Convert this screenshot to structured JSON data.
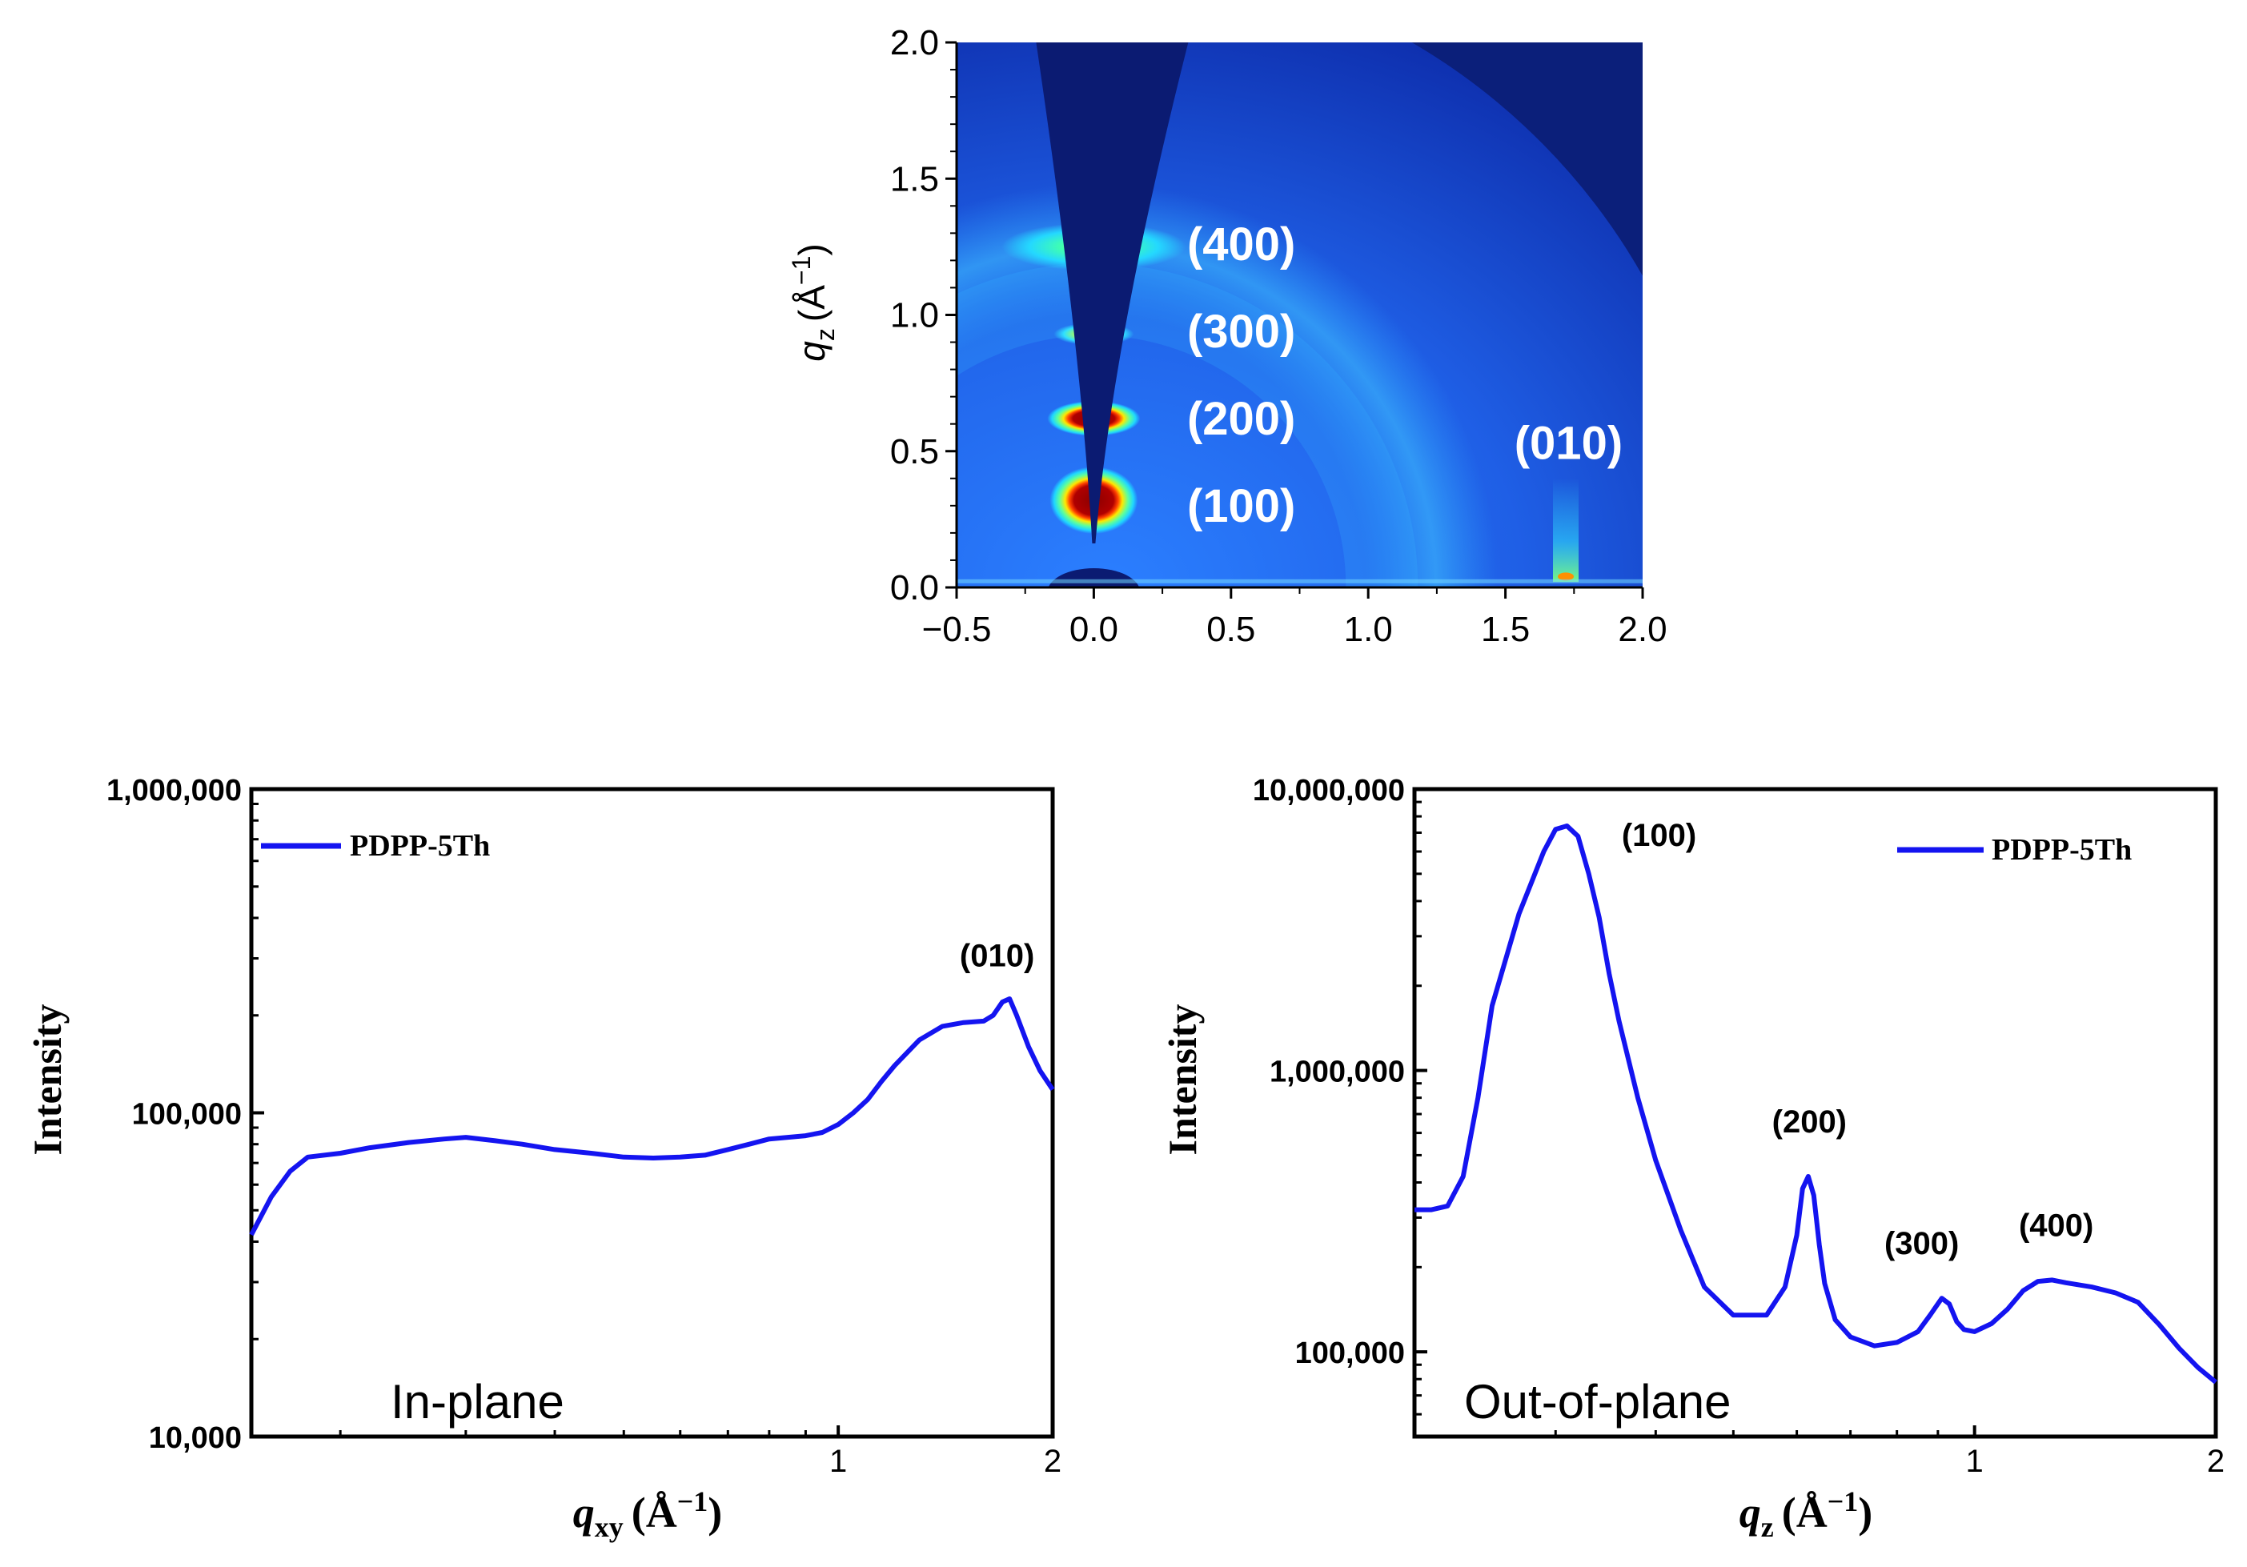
{
  "chart_data": [
    {
      "type": "heatmap",
      "panel": "top",
      "title": "",
      "xlabel": "",
      "ylabel": "q_z (Å^-1)",
      "ylabel_main": "q",
      "ylabel_sub": "z",
      "ylabel_unit": "(Å",
      "ylabel_sup": "−1",
      "ylabel_close": ")",
      "xlim": [
        -0.5,
        2.0
      ],
      "ylim": [
        0.0,
        2.0
      ],
      "xticks": [
        "−0.5",
        "0.0",
        "0.5",
        "1.0",
        "1.5",
        "2.0"
      ],
      "xtick_values": [
        -0.5,
        0.0,
        0.5,
        1.0,
        1.5,
        2.0
      ],
      "yticks": [
        "0.0",
        "0.5",
        "1.0",
        "1.5",
        "2.0"
      ],
      "ytick_values": [
        0.0,
        0.5,
        1.0,
        1.5,
        2.0
      ],
      "peaks": [
        {
          "label": "(100)",
          "qxy": 0.0,
          "qz": 0.32,
          "label_qxy": 0.34,
          "label_qz": 0.3
        },
        {
          "label": "(200)",
          "qxy": 0.0,
          "qz": 0.62,
          "label_qxy": 0.34,
          "label_qz": 0.62
        },
        {
          "label": "(300)",
          "qxy": 0.0,
          "qz": 0.93,
          "label_qxy": 0.34,
          "label_qz": 0.94
        },
        {
          "label": "(400)",
          "qxy": 0.0,
          "qz": 1.25,
          "label_qxy": 0.34,
          "label_qz": 1.26
        },
        {
          "label": "(010)",
          "qxy": 1.72,
          "qz": 0.05,
          "label_qxy": 1.73,
          "label_qz": 0.53
        }
      ]
    },
    {
      "type": "line",
      "panel": "bottom-left",
      "annotation": "In-plane",
      "xlabel": "q_xy (Å^-1)",
      "xlabel_main": "q",
      "xlabel_sub": "xy",
      "xlabel_unit": "(Å",
      "xlabel_sup": "−1",
      "xlabel_close": ")",
      "ylabel": "Intensity",
      "xscale": "log",
      "yscale": "log",
      "xlim": [
        0.15,
        2.0
      ],
      "ylim": [
        10000,
        1000000
      ],
      "xticks": [
        "1",
        "2"
      ],
      "xtick_values": [
        1,
        2
      ],
      "yticks": [
        "10,000",
        "100,000",
        "1,000,000"
      ],
      "ytick_values": [
        10000,
        100000,
        1000000
      ],
      "legend": "top-left",
      "series": [
        {
          "name": "PDPP-5Th",
          "color": "#1414f0",
          "x": [
            0.15,
            0.16,
            0.17,
            0.18,
            0.2,
            0.22,
            0.25,
            0.28,
            0.3,
            0.33,
            0.36,
            0.4,
            0.45,
            0.5,
            0.55,
            0.6,
            0.65,
            0.7,
            0.75,
            0.8,
            0.85,
            0.9,
            0.95,
            1.0,
            1.05,
            1.1,
            1.15,
            1.2,
            1.3,
            1.4,
            1.5,
            1.6,
            1.65,
            1.7,
            1.74,
            1.78,
            1.85,
            1.92,
            2.0
          ],
          "y": [
            42000,
            55000,
            66000,
            73000,
            75000,
            78000,
            81000,
            83000,
            84000,
            82000,
            80000,
            77000,
            75000,
            73000,
            72500,
            73000,
            74000,
            77000,
            80000,
            83000,
            84000,
            85000,
            87000,
            92000,
            100000,
            110000,
            125000,
            140000,
            168000,
            185000,
            190000,
            192000,
            200000,
            220000,
            225000,
            200000,
            160000,
            135000,
            118000
          ]
        }
      ],
      "peaks": [
        {
          "label": "(010)",
          "x": 1.76,
          "y": 226000
        }
      ]
    },
    {
      "type": "line",
      "panel": "bottom-right",
      "annotation": "Out-of-plane",
      "xlabel": "q_z (Å^-1)",
      "xlabel_main": "q",
      "xlabel_sub": "z",
      "xlabel_unit": "(Å",
      "xlabel_sup": "−1",
      "xlabel_close": ")",
      "ylabel": "Intensity",
      "xscale": "log",
      "yscale": "log",
      "xlim": [
        0.2,
        2.0
      ],
      "ylim": [
        50000,
        10000000
      ],
      "xticks": [
        "1",
        "2"
      ],
      "xtick_values": [
        1,
        2
      ],
      "yticks": [
        "100,000",
        "1,000,000",
        "10,000,000"
      ],
      "ytick_values": [
        100000,
        1000000,
        10000000
      ],
      "legend": "top-right",
      "series": [
        {
          "name": "PDPP-5Th",
          "color": "#1414f0",
          "x": [
            0.2,
            0.21,
            0.22,
            0.23,
            0.24,
            0.25,
            0.27,
            0.29,
            0.3,
            0.31,
            0.32,
            0.33,
            0.34,
            0.35,
            0.36,
            0.38,
            0.4,
            0.43,
            0.46,
            0.5,
            0.55,
            0.58,
            0.6,
            0.61,
            0.62,
            0.63,
            0.64,
            0.65,
            0.67,
            0.7,
            0.75,
            0.8,
            0.85,
            0.88,
            0.91,
            0.93,
            0.95,
            0.97,
            1.0,
            1.05,
            1.1,
            1.15,
            1.2,
            1.25,
            1.3,
            1.4,
            1.5,
            1.6,
            1.7,
            1.8,
            1.9,
            2.0
          ],
          "y": [
            320000,
            320000,
            330000,
            420000,
            800000,
            1700000,
            3600000,
            6000000,
            7200000,
            7400000,
            6800000,
            5000000,
            3500000,
            2200000,
            1500000,
            800000,
            480000,
            270000,
            170000,
            135000,
            135000,
            170000,
            260000,
            380000,
            420000,
            360000,
            240000,
            175000,
            130000,
            113000,
            105000,
            108000,
            118000,
            135000,
            155000,
            148000,
            128000,
            120000,
            118000,
            126000,
            142000,
            165000,
            178000,
            180000,
            176000,
            170000,
            162000,
            150000,
            125000,
            103000,
            88000,
            78000
          ]
        }
      ],
      "peaks": [
        {
          "label": "(100)",
          "x": 0.31,
          "y": 7400000
        },
        {
          "label": "(200)",
          "x": 0.615,
          "y": 420000
        },
        {
          "label": "(300)",
          "x": 0.91,
          "y": 155000
        },
        {
          "label": "(400)",
          "x": 1.25,
          "y": 180000
        }
      ]
    }
  ]
}
